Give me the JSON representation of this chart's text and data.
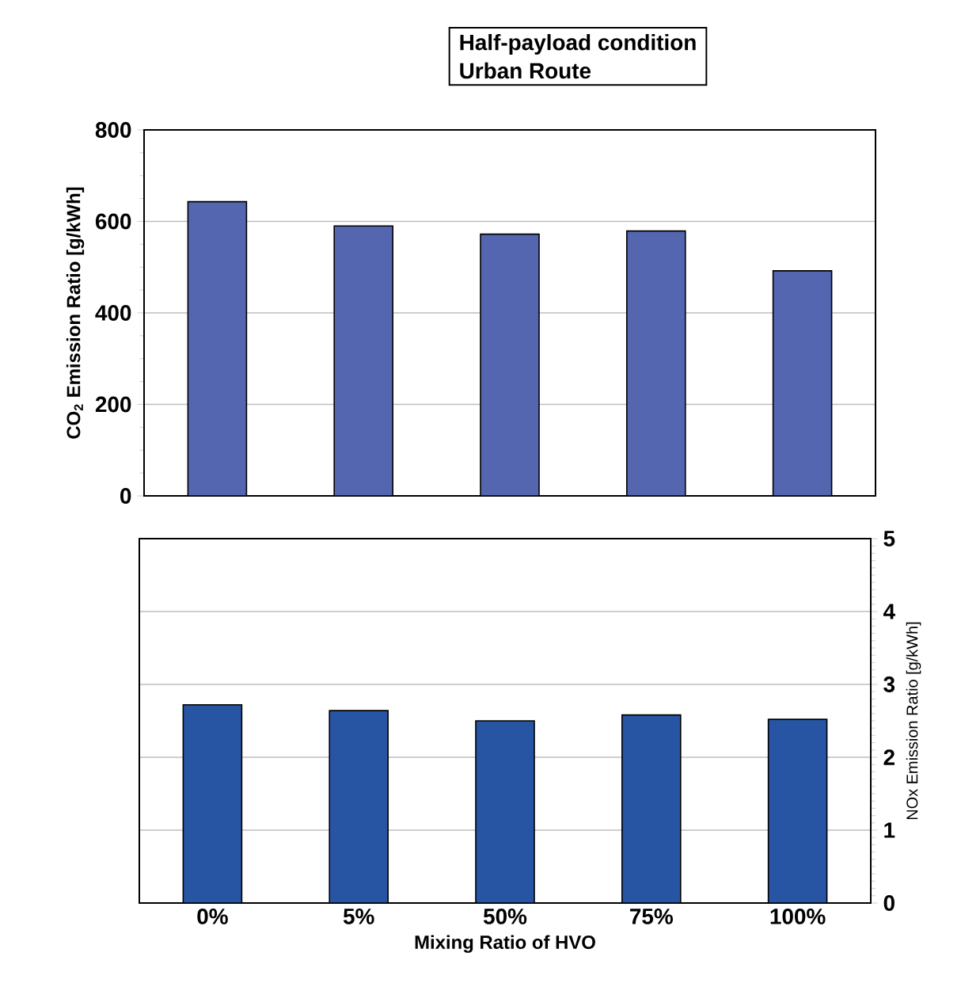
{
  "chart_data": [
    {
      "type": "bar",
      "title": "Half-payload condition",
      "subtitle": "Urban Route",
      "ylabel": "CO$_{2}$ Emission Ratio [g/kWh]",
      "categories": [
        null,
        null,
        null,
        null,
        null
      ],
      "values": [
        643,
        590,
        572,
        579,
        492
      ],
      "color": "#5566b0",
      "ylim": [
        0,
        800
      ],
      "yticks": [
        0,
        200,
        400,
        600,
        800
      ],
      "grid": "y",
      "tick_labels": "y"
    },
    {
      "type": "bar",
      "xlabel": "Mixing Ratio of HVO",
      "ylabel": "NOx Emission Ratio [g/kWh]",
      "categories": [
        "0%",
        "5%",
        "50%",
        "75%",
        "100%"
      ],
      "values": [
        2.72,
        2.64,
        2.5,
        2.58,
        2.52
      ],
      "color": "#2755a3",
      "ylim": [
        0,
        5
      ],
      "yticks": [
        0,
        1,
        2,
        3,
        4,
        5
      ],
      "grid": "y"
    }
  ]
}
